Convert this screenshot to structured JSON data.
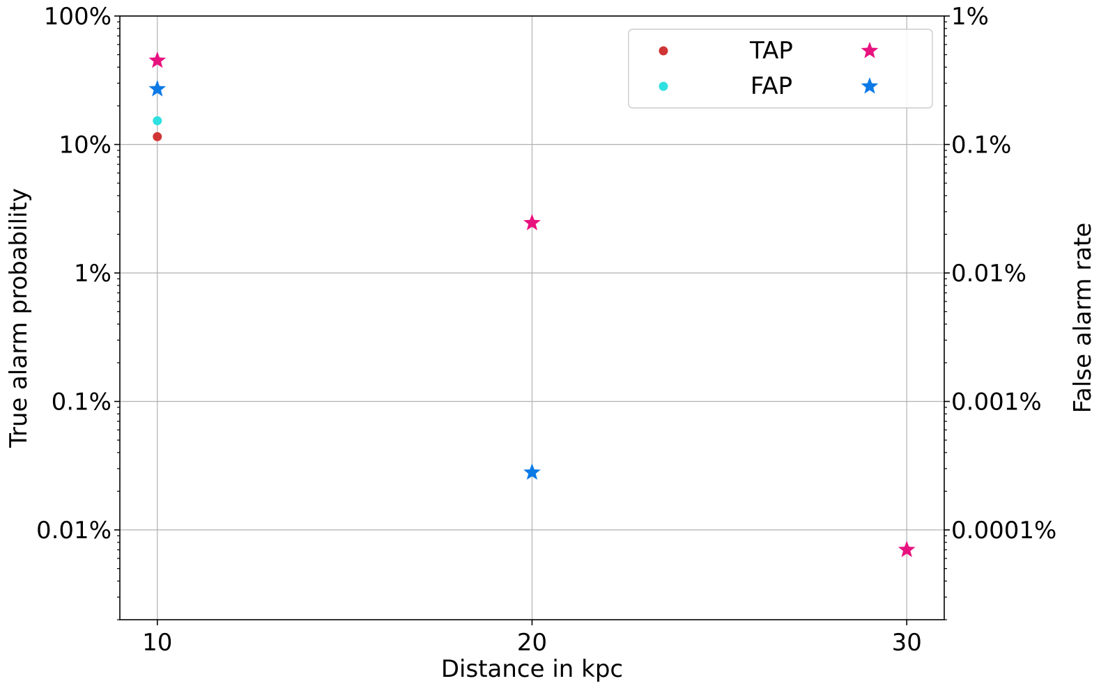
{
  "chart_data": {
    "type": "scatter",
    "xlabel": "Distance in kpc",
    "ylabel_left": "True alarm probability",
    "ylabel_right": "False alarm rate",
    "x_ticks": [
      10,
      20,
      30
    ],
    "x_tick_labels": [
      "10",
      "20",
      "30"
    ],
    "xlim": [
      9,
      31
    ],
    "y_left_scale": "log",
    "y_left_lim": [
      0.002,
      100
    ],
    "y_left_ticks": [
      100,
      10,
      1,
      0.1,
      0.01
    ],
    "y_left_tick_labels": [
      "100%",
      "10%",
      "1%",
      "0.1%",
      "0.01%"
    ],
    "y_right_scale": "log",
    "y_right_lim": [
      2e-05,
      1
    ],
    "y_right_ticks": [
      1,
      0.1,
      0.01,
      0.001,
      0.0001
    ],
    "y_right_tick_labels": [
      "1%",
      "0.1%",
      "0.01%",
      "0.001%",
      "0.0001%"
    ],
    "grid": true,
    "legend_position": "top-right",
    "series": [
      {
        "name": "TAP",
        "axis": "left",
        "marker": "circle",
        "color": "#d03535",
        "points": [
          {
            "x": 10,
            "y": 11.5
          }
        ]
      },
      {
        "name": "FAP",
        "axis": "left",
        "marker": "circle",
        "color": "#2ee0e0",
        "points": [
          {
            "x": 10,
            "y": 15.3
          }
        ]
      },
      {
        "axis": "right",
        "marker": "star",
        "color": "#e8127f",
        "points": [
          {
            "x": 10,
            "y": 0.45
          },
          {
            "x": 20,
            "y": 0.0245
          },
          {
            "x": 30,
            "y": 7e-05
          }
        ]
      },
      {
        "axis": "right",
        "marker": "star",
        "color": "#0b7ae6",
        "points": [
          {
            "x": 10,
            "y": 0.27
          },
          {
            "x": 20,
            "y": 0.00028
          }
        ]
      }
    ],
    "legend": {
      "rows": [
        {
          "label": "TAP",
          "left_marker": "circle",
          "left_color": "#d03535",
          "right_marker": "star",
          "right_color": "#e8127f"
        },
        {
          "label": "FAP",
          "left_marker": "circle",
          "left_color": "#2ee0e0",
          "right_marker": "star",
          "right_color": "#0b7ae6"
        }
      ]
    }
  }
}
